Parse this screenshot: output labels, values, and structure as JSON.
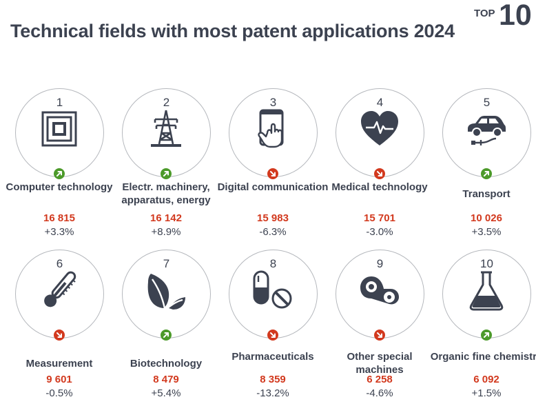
{
  "title": "Technical fields with most patent applications 2024",
  "badge": {
    "small": "TOP",
    "big": "10"
  },
  "colors": {
    "text": "#3c4250",
    "value": "#d2391e",
    "up": "#4c9a2a",
    "down": "#d2391e",
    "circle": "#b5b8bd"
  },
  "fields": [
    {
      "rank": "1",
      "label": "Computer technology",
      "value": "16 815",
      "change": "+3.3%",
      "trend": "up",
      "icon": "chip-icon"
    },
    {
      "rank": "2",
      "label": "Electr. machinery, apparatus, energy",
      "value": "16 142",
      "change": "+8.9%",
      "trend": "up",
      "icon": "power-pylon-icon"
    },
    {
      "rank": "3",
      "label": "Digital communication",
      "value": "15 983",
      "change": "-6.3%",
      "trend": "down",
      "icon": "smartphone-hand-icon"
    },
    {
      "rank": "4",
      "label": "Medical technology",
      "value": "15 701",
      "change": "-3.0%",
      "trend": "down",
      "icon": "heart-pulse-icon"
    },
    {
      "rank": "5",
      "label": "Transport",
      "value": "10 026",
      "change": "+3.5%",
      "trend": "up",
      "icon": "electric-car-icon"
    },
    {
      "rank": "6",
      "label": "Measurement",
      "value": "9 601",
      "change": "-0.5%",
      "trend": "down",
      "icon": "thermometer-icon"
    },
    {
      "rank": "7",
      "label": "Biotechnology",
      "value": "8 479",
      "change": "+5.4%",
      "trend": "up",
      "icon": "leaves-icon"
    },
    {
      "rank": "8",
      "label": "Pharmaceuticals",
      "value": "8 359",
      "change": "-13.2%",
      "trend": "down",
      "icon": "pills-icon"
    },
    {
      "rank": "9",
      "label": "Other special machines",
      "value": "6 258",
      "change": "-4.6%",
      "trend": "down",
      "icon": "machine-gears-icon"
    },
    {
      "rank": "10",
      "label": "Organic fine chemistry",
      "value": "6 092",
      "change": "+1.5%",
      "trend": "up",
      "icon": "flask-icon"
    }
  ]
}
